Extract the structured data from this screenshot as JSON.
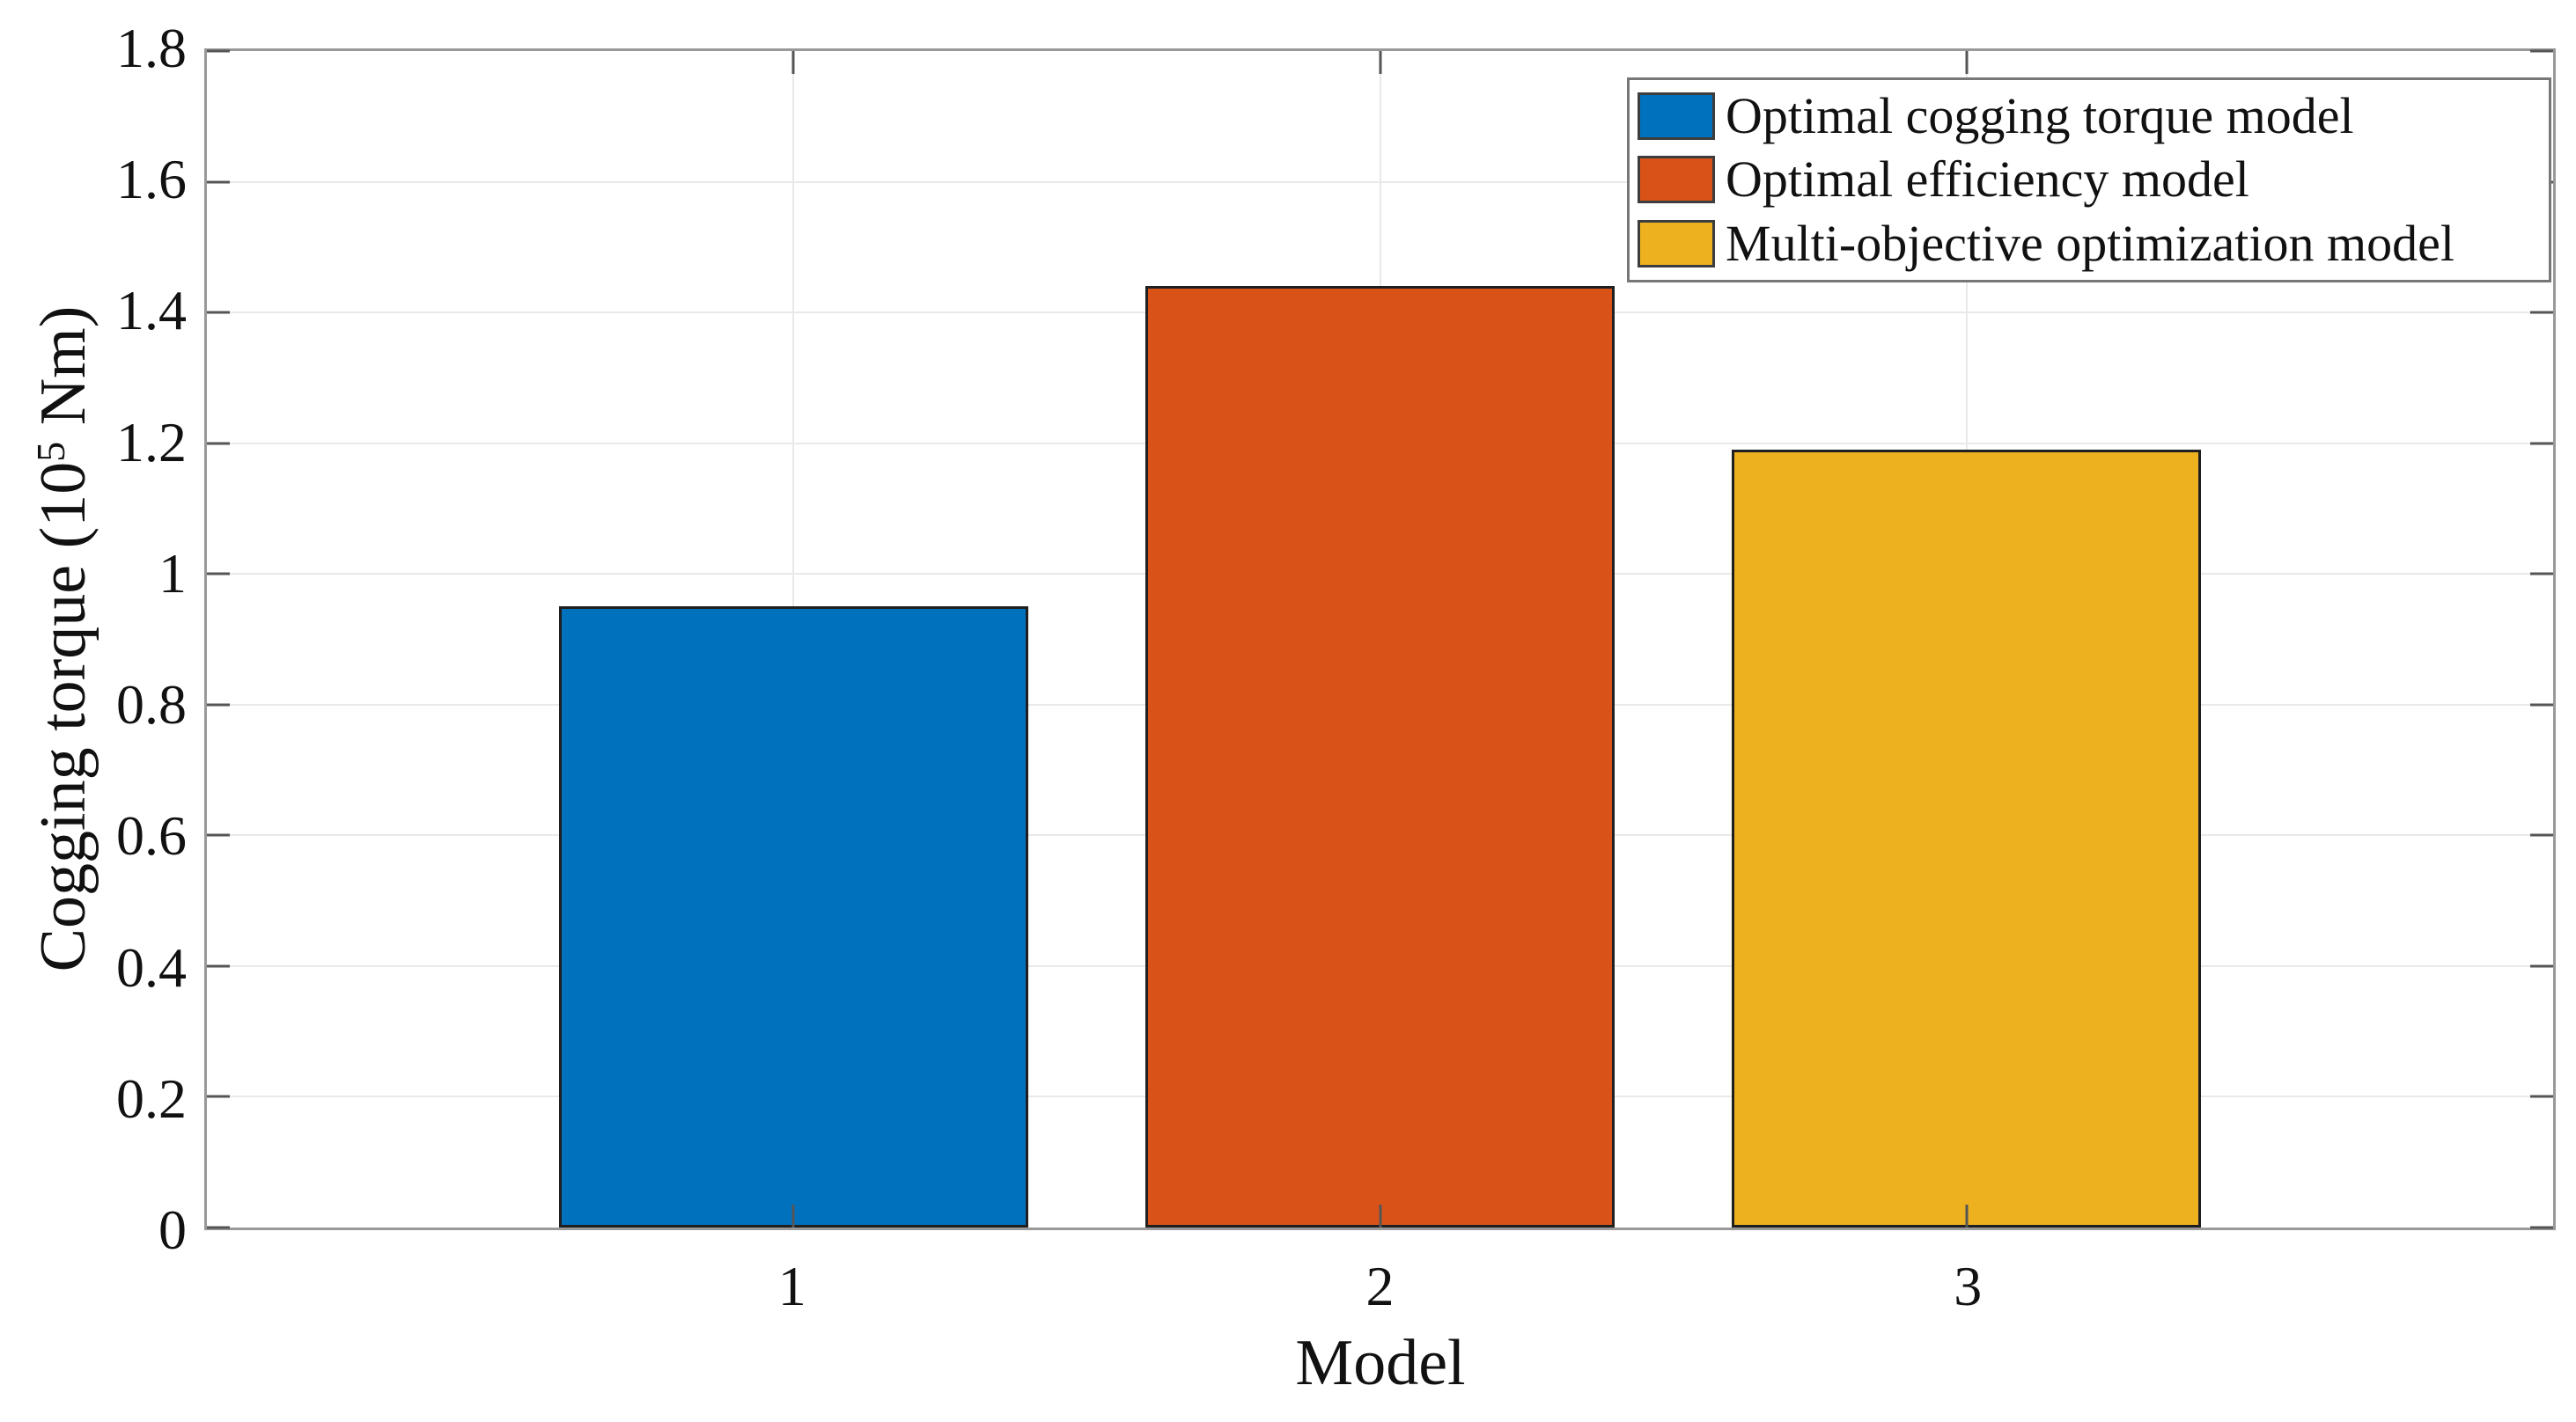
{
  "figure": {
    "background": "#ffffff",
    "axis_color": "#999999",
    "tick_color": "#555555",
    "grid_color": "#e9e9e9",
    "text_color": "#111111"
  },
  "chart_data": {
    "type": "bar",
    "title": "",
    "xlabel": "Model",
    "ylabel": "Cogging torque (10^5 Nm)",
    "ylabel_parts": {
      "prefix": "Cogging torque (10",
      "superscript": "5",
      "suffix": " Nm)"
    },
    "categories": [
      "1",
      "2",
      "3"
    ],
    "series": [
      {
        "name": "Optimal cogging torque model",
        "category": "1",
        "value": 0.95,
        "color": "#0072BD"
      },
      {
        "name": "Optimal efficiency model",
        "category": "2",
        "value": 1.44,
        "color": "#D95319"
      },
      {
        "name": "Multi-objective optimization model",
        "category": "3",
        "value": 1.19,
        "color": "#EDB120"
      }
    ],
    "bar_edge_color": "#1f1f1f",
    "ylim": [
      0,
      1.8
    ],
    "yticks": [
      0,
      0.2,
      0.4,
      0.6,
      0.8,
      1,
      1.2,
      1.4,
      1.6,
      1.8
    ],
    "ytick_labels": [
      "0",
      "0.2",
      "0.4",
      "0.6",
      "0.8",
      "1",
      "1.2",
      "1.4",
      "1.6",
      "1.8"
    ],
    "grid": true,
    "box": true,
    "legend_position": "top-right"
  }
}
